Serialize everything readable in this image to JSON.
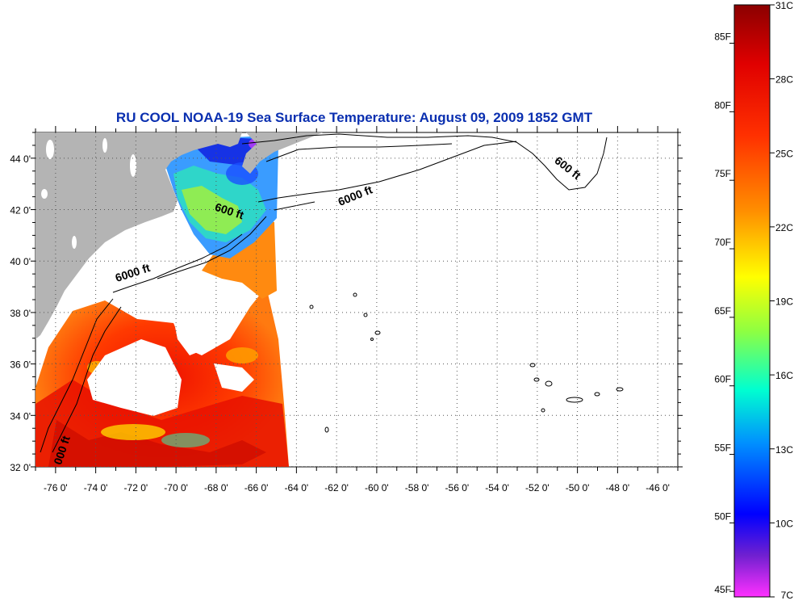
{
  "title": "RU COOL  NOAA-19  Sea Surface Temperature:  August 09, 2009 1852 GMT",
  "map": {
    "lat_range": [
      32,
      45
    ],
    "lon_range": [
      -77,
      -45
    ],
    "lat_ticks": [
      {
        "value": 44,
        "label": "44 0'"
      },
      {
        "value": 42,
        "label": "42 0'"
      },
      {
        "value": 40,
        "label": "40 0'"
      },
      {
        "value": 38,
        "label": "38 0'"
      },
      {
        "value": 36,
        "label": "36 0'"
      },
      {
        "value": 34,
        "label": "34 0'"
      },
      {
        "value": 32,
        "label": "32 0'"
      }
    ],
    "lon_ticks": [
      {
        "value": -76,
        "label": "-76 0'"
      },
      {
        "value": -74,
        "label": "-74 0'"
      },
      {
        "value": -72,
        "label": "-72 0'"
      },
      {
        "value": -70,
        "label": "-70 0'"
      },
      {
        "value": -68,
        "label": "-68 0'"
      },
      {
        "value": -66,
        "label": "-66 0'"
      },
      {
        "value": -64,
        "label": "-64 0'"
      },
      {
        "value": -62,
        "label": "-62 0'"
      },
      {
        "value": -60,
        "label": "-60 0'"
      },
      {
        "value": -58,
        "label": "-58 0'"
      },
      {
        "value": -56,
        "label": "-56 0'"
      },
      {
        "value": -54,
        "label": "-54 0'"
      },
      {
        "value": -52,
        "label": "-52 0'"
      },
      {
        "value": -50,
        "label": "-50 0'"
      },
      {
        "value": -48,
        "label": "-48 0'"
      },
      {
        "value": -46,
        "label": "-46 0'"
      }
    ],
    "contour_labels": [
      {
        "text": "600 ft",
        "lon": -67.4,
        "lat": 41.8
      },
      {
        "text": "6000 ft",
        "lon": -61.0,
        "lat": 42.4
      },
      {
        "text": "600 ft",
        "lon": -50.6,
        "lat": 43.5
      },
      {
        "text": "6000 ft",
        "lon": -72.1,
        "lat": 39.4
      },
      {
        "text": "000 ft",
        "lon": -75.5,
        "lat": 32.6
      }
    ],
    "colors": {
      "land": "#b4b4b4",
      "grid": "#555555",
      "contour": "#000000"
    }
  },
  "colorbar": {
    "fahrenheit": [
      {
        "value": 85,
        "label": "85F"
      },
      {
        "value": 80,
        "label": "80F"
      },
      {
        "value": 75,
        "label": "75F"
      },
      {
        "value": 70,
        "label": "70F"
      },
      {
        "value": 65,
        "label": "65F"
      },
      {
        "value": 60,
        "label": "60F"
      },
      {
        "value": 55,
        "label": "55F"
      },
      {
        "value": 50,
        "label": "50F"
      },
      {
        "value": 45,
        "label": "45F"
      }
    ],
    "celsius": [
      {
        "value": 31,
        "label": "31C"
      },
      {
        "value": 28,
        "label": "28C"
      },
      {
        "value": 25,
        "label": "25C"
      },
      {
        "value": 22,
        "label": "22C"
      },
      {
        "value": 19,
        "label": "19C"
      },
      {
        "value": 16,
        "label": "16C"
      },
      {
        "value": 13,
        "label": "13C"
      },
      {
        "value": 10,
        "label": "10C"
      },
      {
        "value": 7,
        "label": "7C"
      }
    ],
    "range_c": [
      7,
      31
    ],
    "gradient": [
      "#8b0000",
      "#ff1a00",
      "#ff7a00",
      "#ffff00",
      "#80ff40",
      "#00ffff",
      "#0080ff",
      "#0000ff",
      "#5a1ed0",
      "#ff40ff"
    ]
  }
}
